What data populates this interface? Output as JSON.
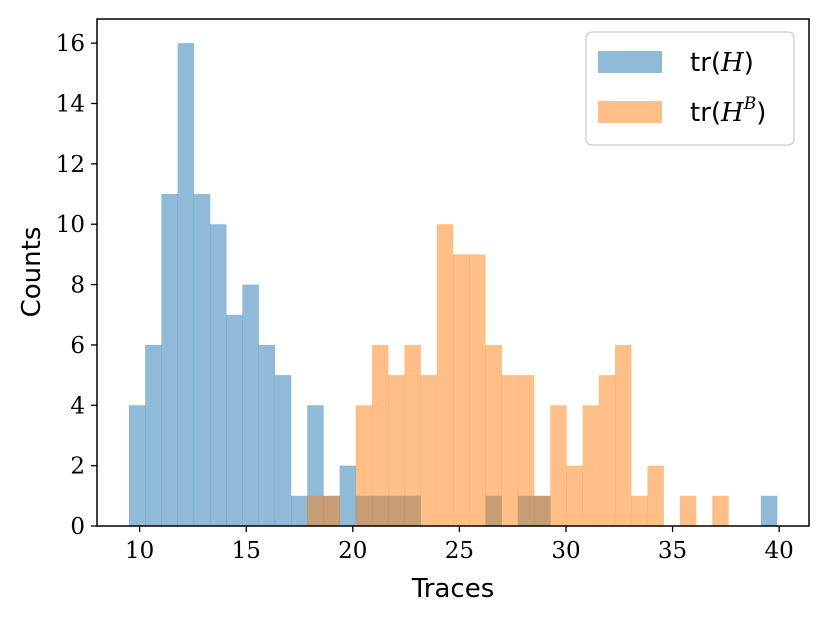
{
  "chart_data": {
    "type": "bar",
    "title": "",
    "xlabel": "Traces",
    "ylabel": "Counts",
    "xlim": [
      8.0,
      41.4
    ],
    "ylim": [
      0,
      16.8
    ],
    "xticks": [
      10,
      15,
      20,
      25,
      30,
      35,
      40
    ],
    "yticks": [
      0,
      2,
      4,
      6,
      8,
      10,
      12,
      14,
      16
    ],
    "bin_width": 0.76,
    "grid": false,
    "legend_position": "top-right",
    "series": [
      {
        "name": "tr(H)",
        "legend_base": "tr",
        "legend_var": "H",
        "legend_sup": "",
        "color": "#1f77b4",
        "alpha": 0.5,
        "bins": [
          {
            "x": 9.5,
            "value": 4
          },
          {
            "x": 10.26,
            "value": 6
          },
          {
            "x": 11.02,
            "value": 11
          },
          {
            "x": 11.78,
            "value": 16
          },
          {
            "x": 12.54,
            "value": 11
          },
          {
            "x": 13.3,
            "value": 10
          },
          {
            "x": 14.06,
            "value": 7
          },
          {
            "x": 14.82,
            "value": 8
          },
          {
            "x": 15.58,
            "value": 6
          },
          {
            "x": 16.34,
            "value": 5
          },
          {
            "x": 17.1,
            "value": 1
          },
          {
            "x": 17.86,
            "value": 4
          },
          {
            "x": 18.62,
            "value": 1
          },
          {
            "x": 19.38,
            "value": 2
          },
          {
            "x": 20.14,
            "value": 1
          },
          {
            "x": 20.9,
            "value": 1
          },
          {
            "x": 21.66,
            "value": 1
          },
          {
            "x": 22.42,
            "value": 1
          },
          {
            "x": 26.22,
            "value": 1
          },
          {
            "x": 27.74,
            "value": 1
          },
          {
            "x": 28.5,
            "value": 1
          },
          {
            "x": 39.14,
            "value": 1
          }
        ]
      },
      {
        "name": "tr(H^B)",
        "legend_base": "tr",
        "legend_var": "H",
        "legend_sup": "B",
        "color": "#ff7f0e",
        "alpha": 0.5,
        "bins": [
          {
            "x": 17.86,
            "value": 1
          },
          {
            "x": 18.62,
            "value": 1
          },
          {
            "x": 20.14,
            "value": 4
          },
          {
            "x": 20.9,
            "value": 6
          },
          {
            "x": 21.66,
            "value": 5
          },
          {
            "x": 22.42,
            "value": 6
          },
          {
            "x": 23.18,
            "value": 5
          },
          {
            "x": 23.94,
            "value": 10
          },
          {
            "x": 24.7,
            "value": 9
          },
          {
            "x": 25.46,
            "value": 9
          },
          {
            "x": 26.22,
            "value": 6
          },
          {
            "x": 26.98,
            "value": 5
          },
          {
            "x": 27.74,
            "value": 5
          },
          {
            "x": 28.5,
            "value": 1
          },
          {
            "x": 29.26,
            "value": 4
          },
          {
            "x": 30.02,
            "value": 2
          },
          {
            "x": 30.78,
            "value": 4
          },
          {
            "x": 31.54,
            "value": 5
          },
          {
            "x": 32.3,
            "value": 6
          },
          {
            "x": 33.06,
            "value": 1
          },
          {
            "x": 33.82,
            "value": 2
          },
          {
            "x": 35.34,
            "value": 1
          },
          {
            "x": 36.86,
            "value": 1
          }
        ]
      }
    ]
  }
}
